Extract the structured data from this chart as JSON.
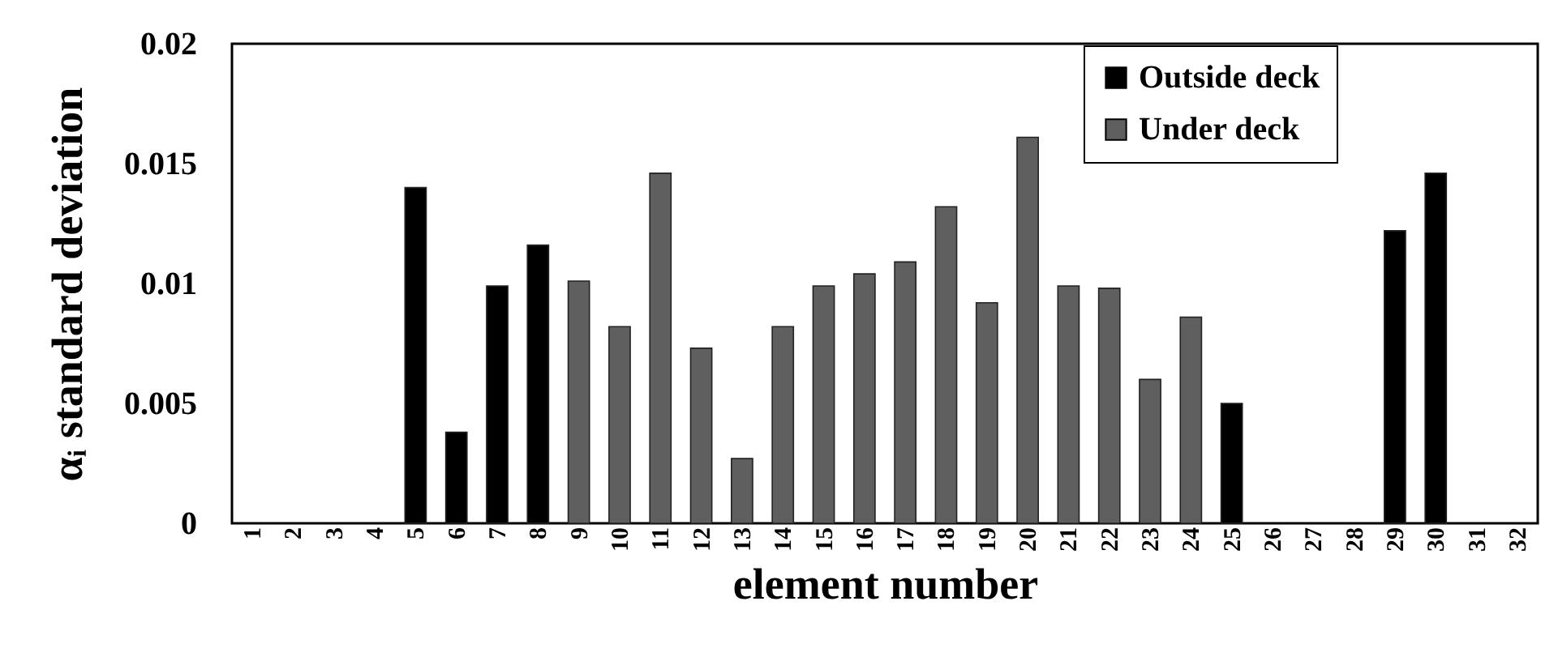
{
  "chart_data": {
    "type": "bar",
    "xlabel": "element  number",
    "ylabel": "αᵢ standard deviation",
    "categories": [
      "1",
      "2",
      "3",
      "4",
      "5",
      "6",
      "7",
      "8",
      "9",
      "10",
      "11",
      "12",
      "13",
      "14",
      "15",
      "16",
      "17",
      "18",
      "19",
      "20",
      "21",
      "22",
      "23",
      "24",
      "25",
      "26",
      "27",
      "28",
      "29",
      "30",
      "31",
      "32"
    ],
    "series": [
      {
        "name": "Outside deck",
        "color": "#000000",
        "values": [
          null,
          null,
          null,
          null,
          0.014,
          0.0038,
          0.0099,
          0.0116,
          null,
          null,
          null,
          null,
          null,
          null,
          null,
          null,
          null,
          null,
          null,
          null,
          null,
          null,
          null,
          null,
          0.005,
          null,
          null,
          null,
          0.0122,
          0.0146,
          null,
          null
        ]
      },
      {
        "name": "Under deck",
        "color": "#5f5f5f",
        "values": [
          null,
          null,
          null,
          null,
          null,
          null,
          null,
          null,
          0.0101,
          0.0082,
          0.0146,
          0.0073,
          0.0027,
          0.0082,
          0.0099,
          0.0104,
          0.0109,
          0.0132,
          0.0092,
          0.0161,
          0.0099,
          0.0098,
          0.006,
          0.0086,
          null,
          null,
          null,
          null,
          null,
          null,
          null,
          null
        ]
      }
    ],
    "ylim": [
      0,
      0.02
    ],
    "yticks": [
      0,
      0.005,
      0.01,
      0.015,
      0.02
    ],
    "grid": false,
    "legend": "top right"
  }
}
